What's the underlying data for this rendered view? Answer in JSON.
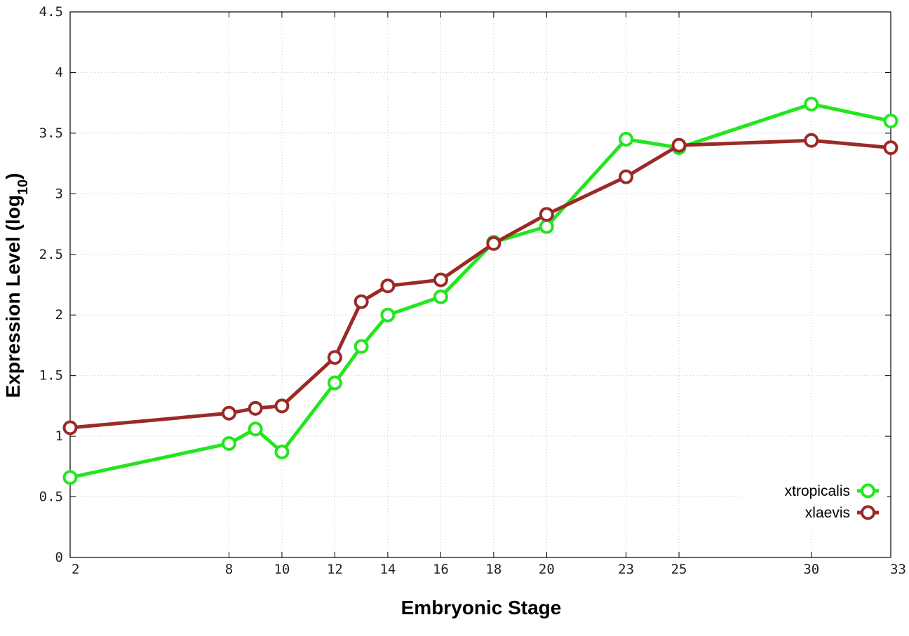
{
  "chart_data": {
    "type": "line",
    "xlabel": "Embryonic Stage",
    "ylabel_main": "Expression Level (log",
    "ylabel_sub": "10",
    "ylabel_close": ")",
    "xlim": [
      2,
      33
    ],
    "ylim": [
      0,
      4.5
    ],
    "x_ticks": [
      2,
      8,
      10,
      12,
      14,
      16,
      18,
      20,
      23,
      25,
      30,
      33
    ],
    "x_tick_labels": [
      "2",
      "8",
      "10",
      "12",
      "14",
      "16",
      "18",
      "20",
      "23",
      "25",
      "30",
      "33"
    ],
    "y_ticks": [
      0,
      0.5,
      1,
      1.5,
      2,
      2.5,
      3,
      3.5,
      4,
      4.5
    ],
    "y_tick_labels": [
      "0",
      "0.5",
      "1",
      "1.5",
      "2",
      "2.5",
      "3",
      "3.5",
      "4",
      "4.5"
    ],
    "grid": true,
    "legend_position": "bottom-right",
    "x": [
      2,
      8,
      9,
      10,
      12,
      13,
      14,
      16,
      18,
      20,
      23,
      25,
      30,
      33
    ],
    "series": [
      {
        "name": "xtropicalis",
        "color": "#22e61e",
        "values": [
          0.66,
          0.94,
          1.06,
          0.87,
          1.44,
          1.74,
          2.0,
          2.15,
          2.6,
          2.73,
          3.45,
          3.38,
          3.74,
          3.6
        ]
      },
      {
        "name": "xlaevis",
        "color": "#9b2a27",
        "values": [
          1.07,
          1.19,
          1.23,
          1.25,
          1.65,
          2.11,
          2.24,
          2.29,
          2.59,
          2.83,
          3.14,
          3.4,
          3.44,
          3.38
        ]
      }
    ]
  }
}
